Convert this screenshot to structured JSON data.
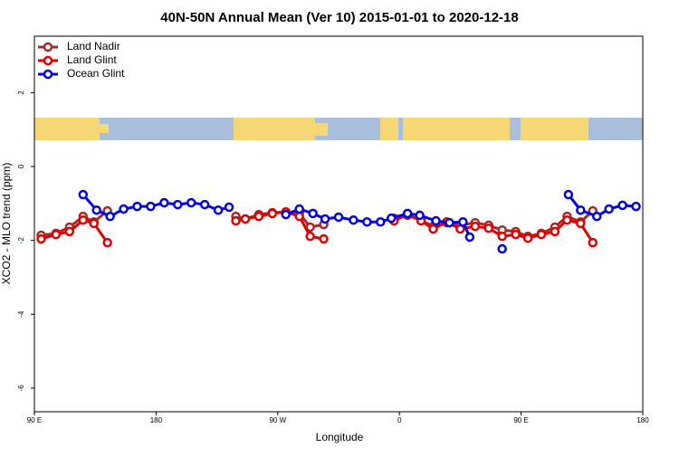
{
  "chart_data": {
    "type": "line",
    "title": "40N-50N Annual Mean (Ver 10)   2015-01-01 to 2020-12-18",
    "x_label": "Longitude",
    "y_label": "XCO2 - MLO trend (ppm)",
    "xlim": [
      90,
      540
    ],
    "ylim": [
      -6.64,
      3.53
    ],
    "xticks": [
      {
        "value": 90,
        "label": "90 E"
      },
      180,
      {
        "value": 270,
        "label": "90 W"
      },
      {
        "value": 360,
        "label": "0"
      },
      {
        "value": 450,
        "label": "90 E"
      },
      {
        "value": 540,
        "label": "180"
      }
    ],
    "yticks": [
      -6,
      -4,
      -2,
      0,
      2
    ],
    "legend": "top-left",
    "series": [
      {
        "name": "Land Nadir",
        "color": "#a52a2a",
        "x": [
          95,
          106,
          116,
          126,
          134,
          144,
          null,
          239,
          246,
          256,
          266,
          276,
          286,
          294,
          304,
          null,
          356,
          366,
          376,
          385,
          395,
          405,
          416,
          426,
          436,
          446,
          455,
          465,
          475,
          484,
          494,
          503
        ],
        "values": [
          -1.86,
          -1.81,
          -1.64,
          -1.35,
          -1.5,
          -1.2,
          null,
          -1.35,
          -1.42,
          -1.3,
          -1.25,
          -1.23,
          -1.27,
          -1.64,
          -1.57,
          null,
          -1.4,
          -1.32,
          -1.45,
          -1.62,
          -1.52,
          -1.59,
          -1.52,
          -1.59,
          -1.72,
          -1.76,
          -1.89,
          -1.81,
          -1.64,
          -1.35,
          -1.5,
          -1.2
        ]
      },
      {
        "name": "Land Glint",
        "color": "#e00000",
        "x": [
          95,
          106,
          116,
          126,
          134,
          144,
          null,
          239,
          246,
          256,
          266,
          276,
          286,
          294,
          304,
          null,
          356,
          366,
          376,
          385,
          395,
          405,
          416,
          426,
          436,
          446,
          455,
          465,
          475,
          484,
          494,
          503
        ],
        "values": [
          -1.96,
          -1.84,
          -1.76,
          -1.45,
          -1.54,
          -2.06,
          null,
          -1.47,
          -1.42,
          -1.35,
          -1.27,
          -1.23,
          -1.35,
          -1.89,
          -1.96,
          null,
          -1.47,
          -1.3,
          -1.47,
          -1.69,
          -1.5,
          -1.69,
          -1.62,
          -1.67,
          -1.89,
          -1.84,
          -1.94,
          -1.84,
          -1.76,
          -1.45,
          -1.54,
          -2.06
        ]
      },
      {
        "name": "Ocean Glint",
        "color": "#0000e6",
        "x": [
          126,
          136,
          146,
          156,
          166,
          176,
          186,
          196,
          206,
          216,
          226,
          234,
          null,
          276,
          286,
          296,
          305,
          315,
          326,
          336,
          346,
          354,
          366,
          375,
          387,
          397,
          407,
          412,
          null,
          436,
          null,
          485,
          494,
          506,
          515,
          525,
          535
        ],
        "values": [
          -0.76,
          -1.18,
          -1.35,
          -1.15,
          -1.08,
          -1.08,
          -0.98,
          -1.03,
          -0.98,
          -1.03,
          -1.18,
          -1.1,
          null,
          -1.3,
          -1.15,
          -1.27,
          -1.42,
          -1.37,
          -1.45,
          -1.5,
          -1.5,
          -1.4,
          -1.27,
          -1.32,
          -1.47,
          -1.52,
          -1.5,
          -1.91,
          null,
          -2.23,
          null,
          -0.76,
          -1.18,
          -1.35,
          -1.15,
          -1.05,
          -1.08
        ]
      }
    ]
  }
}
